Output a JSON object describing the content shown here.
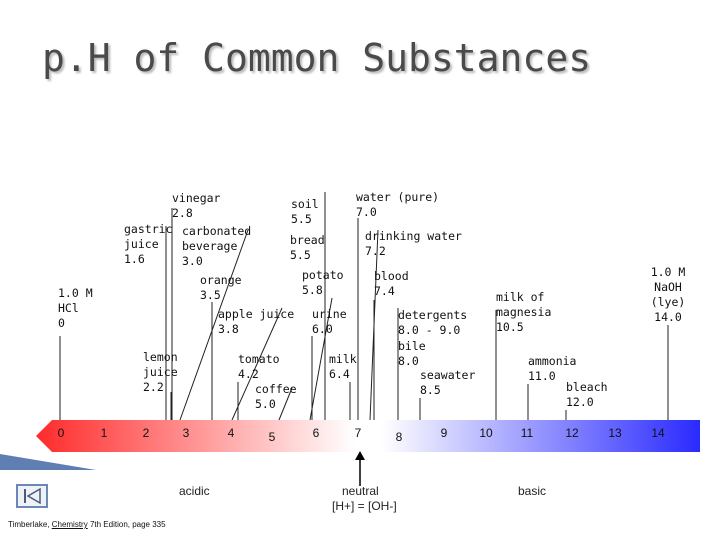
{
  "title": "p.H of Common Substances",
  "substances": [
    {
      "id": "hcl",
      "lines": [
        "1.0 M",
        "HCl",
        "0"
      ]
    },
    {
      "id": "gastric",
      "lines": [
        "gastric",
        "juice",
        "1.6"
      ]
    },
    {
      "id": "lemon",
      "lines": [
        "lemon",
        "juice",
        "2.2"
      ]
    },
    {
      "id": "vinegar",
      "lines": [
        "vinegar",
        "2.8"
      ]
    },
    {
      "id": "carbonated",
      "lines": [
        "carbonated",
        "beverage",
        "3.0"
      ]
    },
    {
      "id": "orange",
      "lines": [
        "orange",
        "3.5"
      ]
    },
    {
      "id": "apple",
      "lines": [
        "apple juice",
        "3.8"
      ]
    },
    {
      "id": "tomato",
      "lines": [
        "tomato",
        "4.2"
      ]
    },
    {
      "id": "coffee",
      "lines": [
        "coffee",
        "5.0"
      ]
    },
    {
      "id": "soil",
      "lines": [
        "soil",
        "5.5"
      ]
    },
    {
      "id": "bread",
      "lines": [
        "bread",
        "5.5"
      ]
    },
    {
      "id": "potato",
      "lines": [
        "potato",
        "5.8"
      ]
    },
    {
      "id": "urine",
      "lines": [
        "urine",
        "6.0"
      ]
    },
    {
      "id": "milk",
      "lines": [
        "milk",
        "6.4"
      ]
    },
    {
      "id": "water",
      "lines": [
        "water (pure)",
        "7.0"
      ]
    },
    {
      "id": "drinking",
      "lines": [
        "drinking water",
        "7.2"
      ]
    },
    {
      "id": "blood",
      "lines": [
        "blood",
        "7.4"
      ]
    },
    {
      "id": "bile",
      "lines": [
        "bile",
        "8.0"
      ]
    },
    {
      "id": "detergents",
      "lines": [
        "detergents",
        "8.0 - 9.0"
      ]
    },
    {
      "id": "seawater",
      "lines": [
        "seawater",
        "8.5"
      ]
    },
    {
      "id": "magnesia",
      "lines": [
        "milk of",
        "magnesia",
        "10.5"
      ]
    },
    {
      "id": "ammonia",
      "lines": [
        "ammonia",
        "11.0"
      ]
    },
    {
      "id": "bleach",
      "lines": [
        "bleach",
        "12.0"
      ]
    },
    {
      "id": "naoh",
      "lines": [
        "1.0 M",
        "NaOH",
        "(lye)",
        "14.0"
      ]
    }
  ],
  "scale": {
    "ticks": [
      "0",
      "1",
      "2",
      "3",
      "4",
      "5",
      "6",
      "7",
      "8",
      "9",
      "10",
      "11",
      "12",
      "13",
      "14"
    ],
    "colors": {
      "acid": "#ff2a2a",
      "neutral": "#ffffff",
      "base": "#2a2aff"
    }
  },
  "labels": {
    "acidic": "acidic",
    "neutral": "neutral",
    "neutral_eq": "[H+] = [OH-]",
    "basic": "basic"
  },
  "credit": {
    "prefix": "Timberlake, ",
    "book": "Chemistry",
    "suffix": " 7th Edition, page 335"
  },
  "nav": {
    "icon": "media-skip-icon"
  }
}
